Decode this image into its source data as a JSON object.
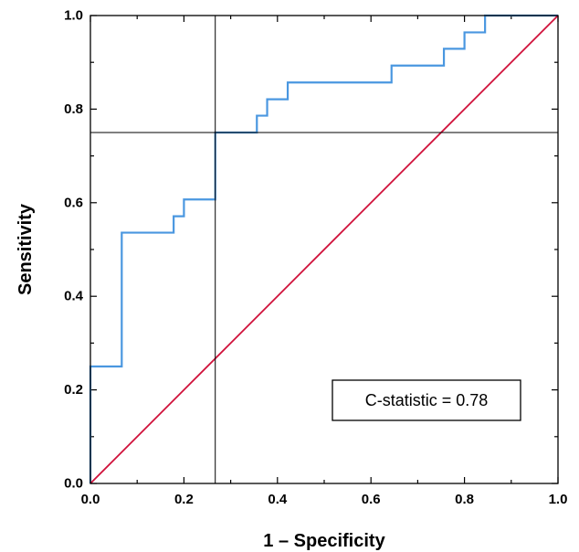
{
  "chart_data": {
    "type": "line",
    "title": "",
    "xlabel": "1 – Specificity",
    "ylabel": "Sensitivity",
    "xlim": [
      0,
      1
    ],
    "ylim": [
      0,
      1
    ],
    "x_ticks": [
      0.0,
      0.2,
      0.4,
      0.6,
      0.8,
      1.0
    ],
    "y_ticks": [
      0.0,
      0.2,
      0.4,
      0.6,
      0.8,
      1.0
    ],
    "x_tick_labels": [
      "0.0",
      "0.2",
      "0.4",
      "0.6",
      "0.8",
      "1.0"
    ],
    "y_tick_labels": [
      "0.0",
      "0.2",
      "0.4",
      "0.6",
      "0.8",
      "1.0"
    ],
    "grid": false,
    "series": [
      {
        "type": "step",
        "color": "#4a97e0",
        "x": [
          0.0,
          0.0,
          0.067,
          0.067,
          0.178,
          0.178,
          0.2,
          0.2,
          0.267,
          0.267,
          0.356,
          0.356,
          0.378,
          0.378,
          0.422,
          0.422,
          0.644,
          0.644,
          0.756,
          0.756,
          0.8,
          0.8,
          0.844,
          0.844,
          1.0
        ],
        "y": [
          0.0,
          0.25,
          0.25,
          0.536,
          0.536,
          0.571,
          0.571,
          0.607,
          0.607,
          0.75,
          0.75,
          0.786,
          0.786,
          0.821,
          0.821,
          0.857,
          0.857,
          0.893,
          0.893,
          0.929,
          0.929,
          0.964,
          0.964,
          1.0,
          1.0
        ]
      },
      {
        "type": "reference",
        "color": "#d0103a",
        "x": [
          0.0,
          1.0
        ],
        "y": [
          0.0,
          1.0
        ]
      }
    ],
    "cutoff": {
      "x": 0.267,
      "y": 0.75,
      "color": "#000000"
    },
    "annotations": [
      {
        "text": "C-statistic = 0.78",
        "location": "lower-right"
      }
    ]
  }
}
